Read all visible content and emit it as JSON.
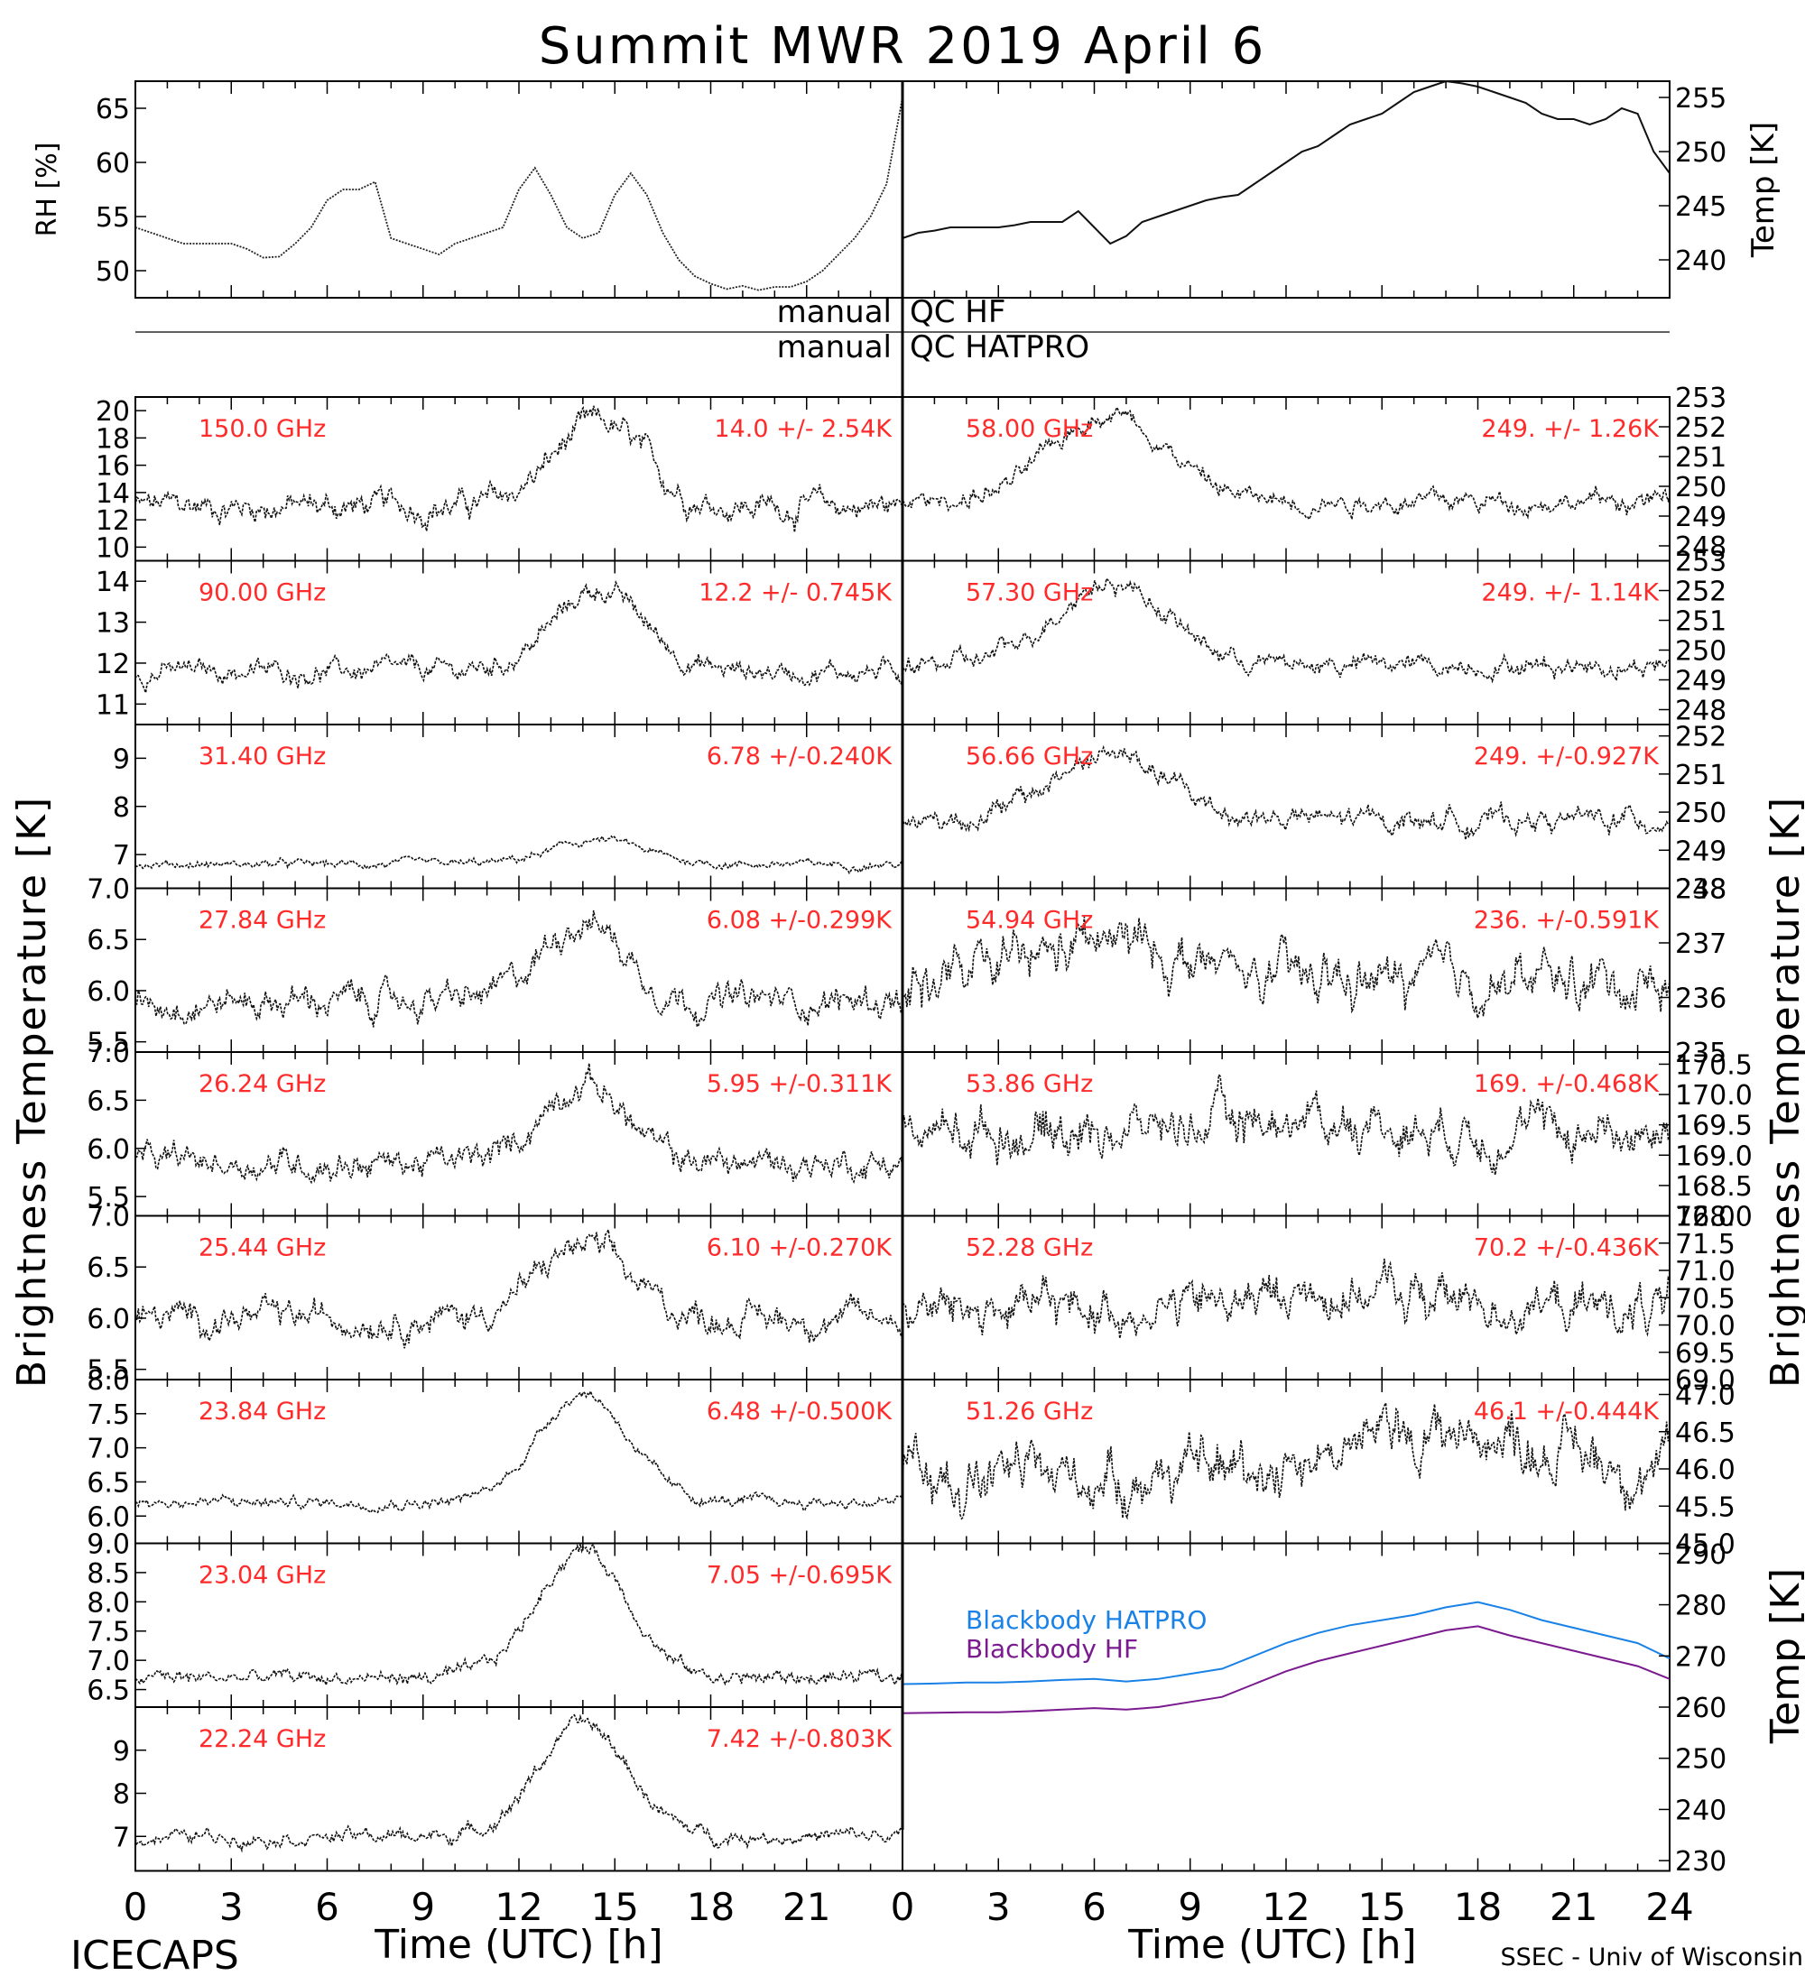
{
  "title": "Summit MWR 2019 April  6",
  "footer": {
    "left_label": "ICECAPS",
    "xlabel_left": "Time (UTC) [h]",
    "xlabel_right": "Time (UTC) [h]",
    "credit": "SSEC - Univ of Wisconsin"
  },
  "qc": {
    "row1_left": "manual",
    "row1_right": "QC HF",
    "row2_left": "manual",
    "row2_right": "QC HATPRO"
  },
  "axis_titles": {
    "left": "Brightness Temperature [K]",
    "right": "Brightness Temperature [K]",
    "rh": "RH [%]",
    "temp": "Temp [K]",
    "bb_temp": "Temp [K]"
  },
  "x_axis": {
    "range": [
      0,
      24
    ],
    "ticks_left": [
      "0",
      "3",
      "6",
      "9",
      "12",
      "15",
      "18",
      "21"
    ],
    "ticks_right": [
      "0",
      "3",
      "6",
      "9",
      "12",
      "15",
      "18",
      "21",
      "24"
    ]
  },
  "chart_data": [
    {
      "id": "rh",
      "type": "line",
      "ylabel": "RH [%]",
      "ylim": [
        47.5,
        67.5
      ],
      "yticks": [
        "50",
        "55",
        "60",
        "65"
      ],
      "x": [
        0,
        0.5,
        1,
        1.5,
        2,
        2.5,
        3,
        3.5,
        4,
        4.5,
        5,
        5.5,
        6,
        6.5,
        7,
        7.5,
        8,
        8.5,
        9,
        9.5,
        10,
        10.5,
        11,
        11.5,
        12,
        12.5,
        13,
        13.5,
        14,
        14.5,
        15,
        15.5,
        16,
        16.5,
        17,
        17.5,
        18,
        18.5,
        19,
        19.5,
        20,
        20.5,
        21,
        21.5,
        22,
        22.5,
        23,
        23.5,
        24
      ],
      "values": [
        54,
        53.5,
        53,
        52.5,
        52.5,
        52.5,
        52.5,
        52,
        51.2,
        51.3,
        52.5,
        54,
        56.5,
        57.5,
        57.5,
        58.2,
        53,
        52.5,
        52,
        51.5,
        52.5,
        53,
        53.5,
        54,
        57.5,
        59.5,
        57,
        54,
        53,
        53.5,
        57,
        59,
        57,
        53.5,
        51,
        49.5,
        48.8,
        48.3,
        48.6,
        48.2,
        48.5,
        48.5,
        49,
        50,
        51.5,
        53,
        55,
        58,
        66
      ]
    },
    {
      "id": "temp",
      "type": "line",
      "ylabel": "Temp [K]",
      "ylim": [
        236.5,
        256.5
      ],
      "yticks": [
        "240",
        "245",
        "250",
        "255"
      ],
      "x": [
        0,
        0.5,
        1,
        1.5,
        2,
        2.5,
        3,
        3.5,
        4,
        4.5,
        5,
        5.5,
        6,
        6.5,
        7,
        7.5,
        8,
        8.5,
        9,
        9.5,
        10,
        10.5,
        11,
        11.5,
        12,
        12.5,
        13,
        13.5,
        14,
        14.5,
        15,
        15.5,
        16,
        16.5,
        17,
        17.5,
        18,
        18.5,
        19,
        19.5,
        20,
        20.5,
        21,
        21.5,
        22,
        22.5,
        23,
        23.5,
        24
      ],
      "values": [
        242,
        242.5,
        242.7,
        243,
        243,
        243,
        243,
        243.2,
        243.5,
        243.5,
        243.5,
        244.5,
        243,
        241.5,
        242.2,
        243.5,
        244,
        244.5,
        245,
        245.5,
        245.8,
        246,
        247,
        248,
        249,
        250,
        250.5,
        251.5,
        252.5,
        253,
        253.5,
        254.5,
        255.5,
        256,
        256.5,
        256.3,
        256,
        255.5,
        255,
        254.5,
        253.5,
        253,
        253,
        252.5,
        253,
        254,
        253.5,
        250,
        248
      ]
    },
    {
      "id": "bb",
      "type": "line",
      "ylabel": "Temp [K]",
      "ylim": [
        228,
        292
      ],
      "yticks": [
        "230",
        "240",
        "250",
        "260",
        "270",
        "280",
        "290"
      ],
      "x": [
        0,
        1,
        2,
        3,
        4,
        5,
        6,
        7,
        8,
        9,
        10,
        11,
        12,
        13,
        14,
        15,
        16,
        17,
        18,
        19,
        20,
        21,
        22,
        23,
        24
      ],
      "series": [
        {
          "name": "Blackbody HATPRO",
          "color": "#1a82e6",
          "values": [
            264.5,
            264.6,
            264.8,
            264.8,
            265,
            265.3,
            265.5,
            265,
            265.5,
            266.5,
            267.5,
            270,
            272.5,
            274.5,
            276,
            277,
            278,
            279.5,
            280.5,
            279,
            277,
            275.5,
            274,
            272.5,
            269.5
          ]
        },
        {
          "name": "Blackbody HF",
          "color": "#7a1a8f",
          "values": [
            258.8,
            258.9,
            259,
            259,
            259.2,
            259.5,
            259.8,
            259.5,
            260,
            261,
            262,
            264.5,
            267,
            269,
            270.5,
            272,
            273.5,
            275,
            275.8,
            274,
            272.5,
            271,
            269.5,
            268,
            265.5
          ]
        }
      ]
    }
  ],
  "channels_left": [
    {
      "label": "150.0 GHz",
      "stats": "14.0 +/-  2.54K",
      "ylim": [
        9,
        21
      ],
      "yticks": [
        "10",
        "12",
        "14",
        "16",
        "18",
        "20"
      ],
      "base": 13,
      "peak": 19,
      "center": 14.5,
      "width": 2,
      "noise": 1.2
    },
    {
      "label": "90.00 GHz",
      "stats": "12.2 +/- 0.745K",
      "ylim": [
        10.5,
        14.5
      ],
      "yticks": [
        "11",
        "12",
        "13",
        "14"
      ],
      "base": 11.8,
      "peak": 13.8,
      "center": 14.5,
      "width": 2,
      "noise": 0.3
    },
    {
      "label": "31.40 GHz",
      "stats": "6.78 +/-0.240K",
      "ylim": [
        6.3,
        9.7
      ],
      "yticks": [
        "7",
        "8",
        "9"
      ],
      "base": 6.8,
      "peak": 7.3,
      "center": 14.5,
      "width": 2,
      "noise": 0.1
    },
    {
      "label": "27.84 GHz",
      "stats": "6.08 +/-0.299K",
      "ylim": [
        5.4,
        7.0
      ],
      "yticks": [
        "5.5",
        "6.0",
        "6.5",
        "7.0"
      ],
      "base": 5.9,
      "peak": 6.7,
      "center": 14,
      "width": 1.8,
      "noise": 0.18
    },
    {
      "label": "26.24 GHz",
      "stats": "5.95 +/-0.311K",
      "ylim": [
        5.3,
        7.0
      ],
      "yticks": [
        "5.5",
        "6.0",
        "6.5",
        "7.0"
      ],
      "base": 5.85,
      "peak": 6.7,
      "center": 14,
      "width": 1.8,
      "noise": 0.18
    },
    {
      "label": "25.44 GHz",
      "stats": "6.10 +/-0.270K",
      "ylim": [
        5.4,
        7.0
      ],
      "yticks": [
        "5.5",
        "6.0",
        "6.5",
        "7.0"
      ],
      "base": 6.0,
      "peak": 6.7,
      "center": 14,
      "width": 2,
      "noise": 0.17
    },
    {
      "label": "23.84 GHz",
      "stats": "6.48 +/-0.500K",
      "ylim": [
        5.6,
        8.0
      ],
      "yticks": [
        "6.0",
        "6.5",
        "7.0",
        "7.5",
        "8.0"
      ],
      "base": 6.2,
      "peak": 7.8,
      "center": 14,
      "width": 2,
      "noise": 0.1
    },
    {
      "label": "23.04 GHz",
      "stats": "7.05 +/-0.695K",
      "ylim": [
        6.2,
        9.0
      ],
      "yticks": [
        "6.5",
        "7.0",
        "7.5",
        "8.0",
        "8.5",
        "9.0"
      ],
      "base": 6.7,
      "peak": 8.9,
      "center": 14,
      "width": 2,
      "noise": 0.15
    },
    {
      "label": "22.24 GHz",
      "stats": "7.42 +/-0.803K",
      "ylim": [
        6.2,
        10.0
      ],
      "yticks": [
        "7",
        "8",
        "9"
      ],
      "base": 7.0,
      "peak": 9.6,
      "center": 14,
      "width": 2,
      "noise": 0.2
    }
  ],
  "channels_right": [
    {
      "label": "58.00 GHz",
      "stats": "249. +/- 1.26K",
      "ylim": [
        247.5,
        253
      ],
      "yticks": [
        "248",
        "249",
        "250",
        "251",
        "252",
        "253"
      ],
      "base": 249.5,
      "peak": 252.5,
      "center": 6.5,
      "width": 2.5,
      "noise": 0.4
    },
    {
      "label": "57.30 GHz",
      "stats": "249. +/- 1.14K",
      "ylim": [
        247.5,
        253
      ],
      "yticks": [
        "248",
        "249",
        "250",
        "251",
        "252",
        "253"
      ],
      "base": 249.5,
      "peak": 252.3,
      "center": 6.5,
      "width": 2.5,
      "noise": 0.4
    },
    {
      "label": "56.66 GHz",
      "stats": "249. +/-0.927K",
      "ylim": [
        248,
        252.3
      ],
      "yticks": [
        "248",
        "249",
        "250",
        "251",
        "252"
      ],
      "base": 249.8,
      "peak": 251.5,
      "center": 6.5,
      "width": 2.5,
      "noise": 0.35
    },
    {
      "label": "54.94 GHz",
      "stats": "236. +/-0.591K",
      "ylim": [
        235,
        238
      ],
      "yticks": [
        "235",
        "236",
        "237",
        "238"
      ],
      "base": 236.3,
      "peak": 237,
      "center": 6.5,
      "width": 3,
      "noise": 0.55
    },
    {
      "label": "53.86 GHz",
      "stats": "169. +/-0.468K",
      "ylim": [
        168,
        170.7
      ],
      "yticks": [
        "168.0",
        "168.5",
        "169.0",
        "169.5",
        "170.0",
        "170.5"
      ],
      "base": 169.4,
      "peak": 169.6,
      "center": 12,
      "width": 4,
      "noise": 0.45
    },
    {
      "label": "52.28 GHz",
      "stats": "70.2 +/-0.436K",
      "ylim": [
        69,
        72
      ],
      "yticks": [
        "69.0",
        "69.5",
        "70.0",
        "70.5",
        "71.0",
        "71.5",
        "72.0"
      ],
      "base": 70.3,
      "peak": 70.6,
      "center": 14,
      "width": 4,
      "noise": 0.5
    },
    {
      "label": "51.26 GHz",
      "stats": "46.1 +/-0.444K",
      "ylim": [
        45,
        47.2
      ],
      "yticks": [
        "45.0",
        "45.5",
        "46.0",
        "46.5",
        "47.0"
      ],
      "base": 45.9,
      "peak": 46.5,
      "center": 17,
      "width": 5,
      "noise": 0.45
    }
  ]
}
